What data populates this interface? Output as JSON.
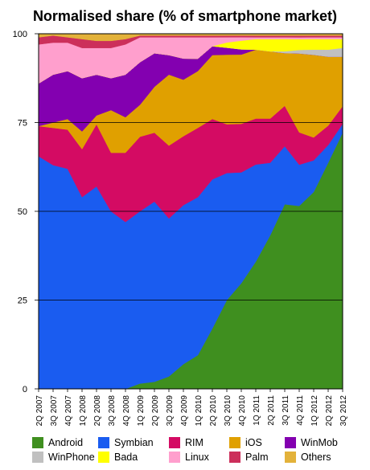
{
  "chart_data": {
    "type": "area",
    "title": "Normalised share (% of smartphone market)",
    "ylim": [
      0,
      100
    ],
    "yticks": [
      0,
      25,
      50,
      75,
      100
    ],
    "grid": "horizontal",
    "legend_position": "bottom",
    "categories": [
      "2Q 2007",
      "3Q 2007",
      "4Q 2007",
      "1Q 2008",
      "2Q 2008",
      "3Q 2008",
      "4Q 2008",
      "1Q 2009",
      "2Q 2009",
      "3Q 2009",
      "4Q 2009",
      "1Q 2010",
      "2Q 2010",
      "3Q 2010",
      "4Q 2010",
      "1Q 2011",
      "2Q 2011",
      "3Q 2011",
      "4Q 2011",
      "1Q 2012",
      "2Q 2012",
      "3Q 2012"
    ],
    "series": [
      {
        "name": "Android",
        "color": "#3f8f1f",
        "values": [
          0,
          0,
          0,
          0,
          0,
          0,
          0,
          1.5,
          2,
          3.5,
          7,
          9.5,
          17,
          25.5,
          30.5,
          36,
          43.5,
          52.5,
          51,
          56,
          64,
          72.5
        ]
      },
      {
        "name": "Symbian",
        "color": "#1a5cf0",
        "values": [
          65.5,
          63,
          62,
          54,
          57,
          50,
          47,
          48.5,
          51,
          44.5,
          45,
          44.5,
          42,
          36.5,
          32,
          27.5,
          20.5,
          16.5,
          11.5,
          9,
          5,
          2.5
        ]
      },
      {
        "name": "RIM",
        "color": "#d40b63",
        "values": [
          8.5,
          10.5,
          11,
          13.5,
          17.5,
          16.5,
          19.5,
          21,
          19.5,
          20.5,
          19.5,
          19.5,
          17,
          14,
          14,
          13,
          12.5,
          11.5,
          9,
          6.5,
          5.5,
          5
        ]
      },
      {
        "name": "iOS",
        "color": "#e0a000",
        "values": [
          0,
          1.5,
          3,
          5,
          2.5,
          12,
          10,
          9,
          13,
          20,
          16,
          16,
          18,
          20,
          20,
          19.5,
          19,
          15,
          22,
          23.5,
          19.5,
          14
        ]
      },
      {
        "name": "WinMob",
        "color": "#8300b0",
        "values": [
          12,
          13.5,
          13.5,
          15,
          11.5,
          9,
          12,
          12,
          9.5,
          5.5,
          6,
          3.5,
          2.5,
          2,
          1.5,
          0,
          0,
          0,
          0,
          0,
          0,
          0
        ]
      },
      {
        "name": "WinPhone",
        "color": "#c0c0c0",
        "values": [
          0,
          0,
          0,
          0,
          0,
          0,
          0,
          0,
          0,
          0,
          0,
          0,
          0,
          0,
          0,
          0,
          0,
          0.5,
          1,
          1.5,
          2,
          2.5
        ]
      },
      {
        "name": "Bada",
        "color": "#ffff00",
        "values": [
          0,
          0,
          0,
          0,
          0,
          0,
          0,
          0,
          0,
          0,
          0,
          0,
          0,
          1.5,
          2.5,
          3,
          3.5,
          3.5,
          3,
          3,
          3,
          2.5
        ]
      },
      {
        "name": "Linux",
        "color": "#ff9fcd",
        "values": [
          11,
          9,
          8,
          8.5,
          7.5,
          8.5,
          8.5,
          7,
          4.5,
          5,
          6,
          6,
          2.5,
          1.5,
          1,
          0.5,
          0.5,
          0.5,
          0.5,
          0.5,
          0.5,
          0.5
        ]
      },
      {
        "name": "Palm",
        "color": "#cc2f5b",
        "values": [
          2,
          2,
          1.5,
          2.5,
          2,
          2,
          1.5,
          0.5,
          0.5,
          0.5,
          0.5,
          0.5,
          0.5,
          0.5,
          0.5,
          0.5,
          0.5,
          0.5,
          0.5,
          0.5,
          0.5,
          0.5
        ]
      },
      {
        "name": "Others",
        "color": "#e3b23a",
        "values": [
          1,
          0.5,
          1,
          1.5,
          2,
          2,
          1.5,
          0.5,
          0.5,
          0.5,
          0.5,
          0.5,
          0.5,
          0.5,
          0.5,
          0.5,
          0.5,
          0.5,
          0.5,
          0.5,
          0.5,
          0.5
        ]
      }
    ],
    "legend_rows": [
      [
        "Android",
        "Symbian",
        "RIM",
        "iOS",
        "WinMob"
      ],
      [
        "WinPhone",
        "Bada",
        "Linux",
        "Palm",
        "Others"
      ]
    ]
  }
}
